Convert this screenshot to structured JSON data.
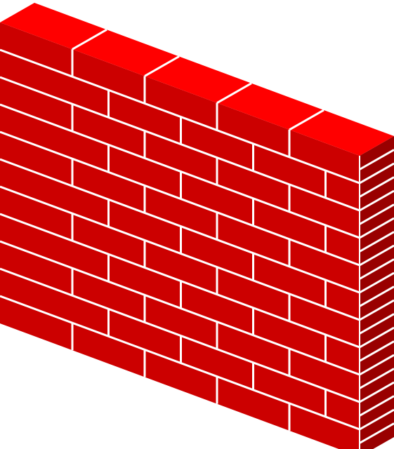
{
  "illustration": {
    "subject": "brick-wall-icon",
    "colors": {
      "background": "#ffffff",
      "mortar": "#ffffff",
      "front_face": "#cc0000",
      "top_face": "#ff0000",
      "side_face": "#990000"
    },
    "courses": 11,
    "top_bricks": 5
  }
}
